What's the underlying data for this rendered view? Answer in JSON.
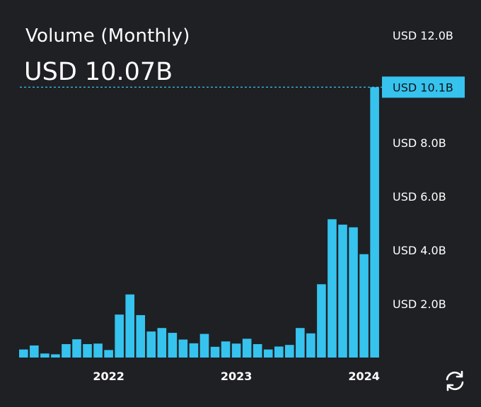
{
  "header": {
    "title": "Volume (Monthly)",
    "current_value": "USD 10.07B"
  },
  "colors": {
    "background": "#1f2024",
    "bar": "#36c3ee",
    "text": "#ffffff",
    "reference_line": "#36c3ee"
  },
  "icons": {
    "refresh": "refresh-icon"
  },
  "chart_data": {
    "type": "bar",
    "title": "Volume (Monthly)",
    "xlabel": "",
    "ylabel": "",
    "ylim": [
      0,
      12.0
    ],
    "y_unit": "billion USD",
    "y_ticks": [
      {
        "value": 2.0,
        "label": "USD 2.0B"
      },
      {
        "value": 4.0,
        "label": "USD 4.0B"
      },
      {
        "value": 6.0,
        "label": "USD 6.0B"
      },
      {
        "value": 8.0,
        "label": "USD 8.0B"
      },
      {
        "value": 12.0,
        "label": "USD 12.0B"
      }
    ],
    "x_ticks": [
      {
        "index": 8,
        "label": "2022"
      },
      {
        "index": 20,
        "label": "2023"
      },
      {
        "index": 32,
        "label": "2024"
      }
    ],
    "current_marker": {
      "value": 10.07,
      "label": "USD 10.1B"
    },
    "values": [
      0.3,
      0.45,
      0.15,
      0.12,
      0.5,
      0.68,
      0.5,
      0.52,
      0.28,
      1.6,
      2.35,
      1.58,
      0.97,
      1.1,
      0.92,
      0.67,
      0.53,
      0.88,
      0.4,
      0.6,
      0.52,
      0.7,
      0.5,
      0.3,
      0.41,
      0.47,
      1.1,
      0.9,
      2.73,
      5.15,
      4.95,
      4.85,
      3.85,
      10.07
    ],
    "grid": false,
    "legend": "none"
  }
}
